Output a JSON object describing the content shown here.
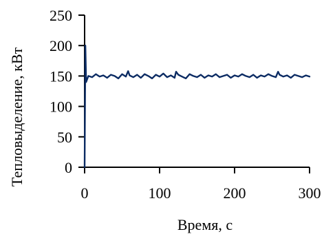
{
  "chart_data": {
    "type": "line",
    "xlabel": "Время, с",
    "ylabel": "Тепловыделение, кВт",
    "xlim": [
      0,
      300
    ],
    "ylim": [
      0,
      250
    ],
    "xticks": [
      0,
      100,
      200,
      300
    ],
    "yticks": [
      0,
      50,
      100,
      150,
      200,
      250
    ],
    "grid": false,
    "series": [
      {
        "color": "#0b2b63",
        "x": [
          0,
          1,
          2,
          5,
          10,
          15,
          20,
          25,
          30,
          35,
          40,
          45,
          50,
          55,
          58,
          60,
          65,
          70,
          75,
          80,
          85,
          90,
          95,
          100,
          105,
          110,
          115,
          120,
          122,
          125,
          130,
          135,
          140,
          145,
          150,
          155,
          160,
          165,
          170,
          175,
          180,
          185,
          190,
          195,
          200,
          205,
          210,
          215,
          220,
          225,
          230,
          235,
          240,
          245,
          250,
          255,
          258,
          260,
          265,
          270,
          275,
          280,
          285,
          290,
          295,
          300
        ],
        "y": [
          0,
          200,
          140,
          150,
          148,
          153,
          149,
          151,
          147,
          152,
          150,
          146,
          153,
          149,
          158,
          151,
          148,
          152,
          147,
          153,
          150,
          146,
          152,
          149,
          154,
          148,
          151,
          147,
          157,
          152,
          149,
          146,
          153,
          150,
          148,
          152,
          147,
          151,
          149,
          153,
          148,
          150,
          152,
          147,
          151,
          149,
          153,
          150,
          148,
          152,
          147,
          151,
          149,
          153,
          150,
          148,
          157,
          152,
          149,
          151,
          147,
          152,
          150,
          148,
          151,
          149
        ]
      }
    ]
  }
}
